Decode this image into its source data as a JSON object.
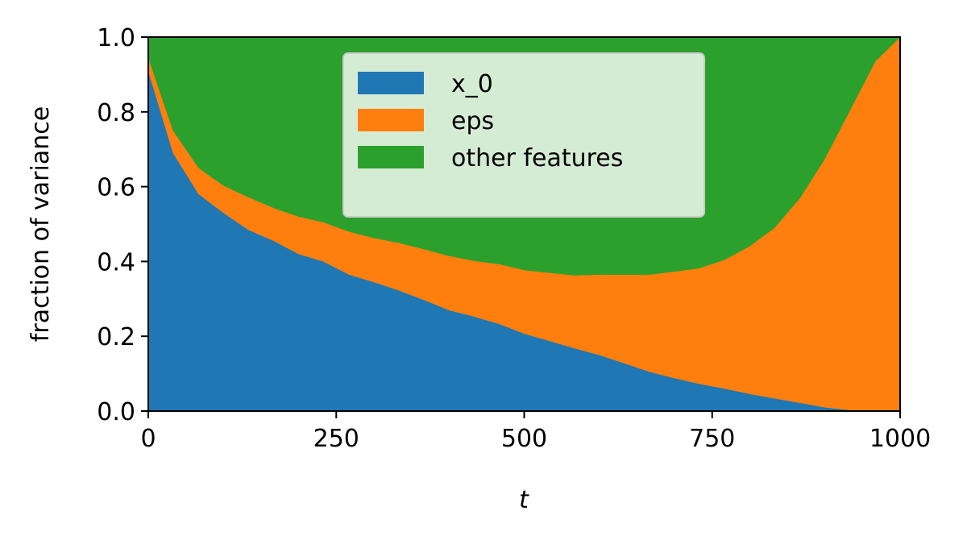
{
  "chart_data": {
    "type": "area",
    "stacked": true,
    "xlabel": "t",
    "ylabel": "fraction of variance",
    "xlim": [
      0,
      1000
    ],
    "ylim": [
      0,
      1.0
    ],
    "xticks": [
      0,
      250,
      500,
      750,
      1000
    ],
    "yticks": [
      0.0,
      0.2,
      0.4,
      0.6,
      0.8,
      1.0
    ],
    "xtick_labels": [
      "0",
      "250",
      "500",
      "750",
      "1000"
    ],
    "ytick_labels": [
      "0.0",
      "0.2",
      "0.4",
      "0.6",
      "0.8",
      "1.0"
    ],
    "grid": false,
    "legend_position": "top-center",
    "x": [
      0,
      33,
      67,
      100,
      133,
      167,
      200,
      233,
      267,
      300,
      333,
      367,
      400,
      433,
      467,
      500,
      533,
      567,
      600,
      633,
      667,
      700,
      733,
      767,
      800,
      833,
      867,
      900,
      933,
      967,
      1000
    ],
    "series": [
      {
        "name": "x_0",
        "color": "#1f77b4",
        "values": [
          0.91,
          0.69,
          0.58,
          0.53,
          0.485,
          0.455,
          0.42,
          0.4,
          0.365,
          0.345,
          0.323,
          0.297,
          0.27,
          0.253,
          0.233,
          0.207,
          0.188,
          0.168,
          0.15,
          0.128,
          0.105,
          0.088,
          0.073,
          0.06,
          0.046,
          0.034,
          0.022,
          0.01,
          0.003,
          0.0,
          0.0
        ]
      },
      {
        "name": "eps",
        "color": "#ff7f0e",
        "values": [
          0.035,
          0.06,
          0.07,
          0.073,
          0.087,
          0.088,
          0.1,
          0.105,
          0.115,
          0.118,
          0.127,
          0.136,
          0.145,
          0.149,
          0.16,
          0.17,
          0.182,
          0.195,
          0.215,
          0.237,
          0.26,
          0.285,
          0.309,
          0.345,
          0.395,
          0.456,
          0.548,
          0.665,
          0.8,
          0.935,
          1.0
        ]
      },
      {
        "name": "other features",
        "color": "#2ca02c",
        "values": [
          0.055,
          0.25,
          0.35,
          0.397,
          0.428,
          0.457,
          0.48,
          0.495,
          0.52,
          0.537,
          0.55,
          0.567,
          0.585,
          0.598,
          0.607,
          0.623,
          0.63,
          0.637,
          0.635,
          0.635,
          0.635,
          0.627,
          0.618,
          0.595,
          0.559,
          0.51,
          0.43,
          0.325,
          0.197,
          0.065,
          0.0
        ]
      }
    ]
  }
}
